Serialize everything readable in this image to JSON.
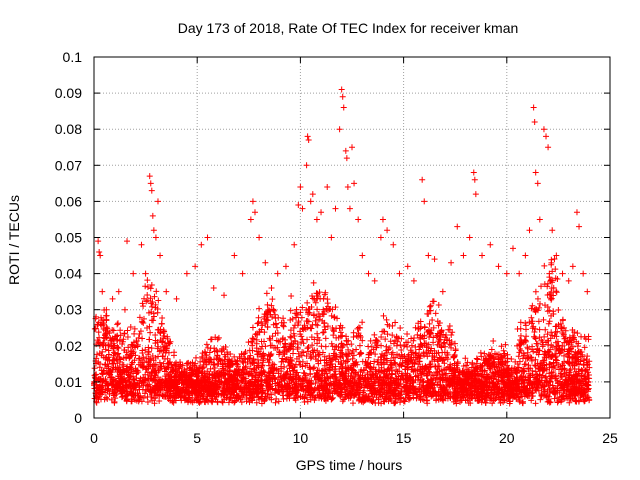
{
  "chart_data": {
    "type": "scatter",
    "title": "Day 173 of 2018, Rate Of TEC Index for receiver kman",
    "xlabel": "GPS time / hours",
    "ylabel": "ROTI / TECUs",
    "xlim": [
      0,
      25
    ],
    "ylim": [
      0,
      0.1
    ],
    "xticks": [
      0,
      5,
      10,
      15,
      20,
      25
    ],
    "xtick_labels": [
      "0",
      "5",
      "10",
      "15",
      "20",
      "25"
    ],
    "yticks": [
      0,
      0.01,
      0.02,
      0.03,
      0.04,
      0.05,
      0.06,
      0.07,
      0.08,
      0.09,
      0.1
    ],
    "ytick_labels": [
      "0",
      "0.01",
      "0.02",
      "0.03",
      "0.04",
      "0.05",
      "0.06",
      "0.07",
      "0.08",
      "0.09",
      "0.1"
    ],
    "grid": true,
    "marker": "+",
    "color": "#ff0000",
    "series": [
      {
        "name": "ROTI",
        "points": [
          [
            0.1,
            0.028
          ],
          [
            0.2,
            0.049
          ],
          [
            0.25,
            0.046
          ],
          [
            0.3,
            0.045
          ],
          [
            0.4,
            0.035
          ],
          [
            0.6,
            0.03
          ],
          [
            0.9,
            0.033
          ],
          [
            1.2,
            0.035
          ],
          [
            1.5,
            0.03
          ],
          [
            1.6,
            0.049
          ],
          [
            1.9,
            0.04
          ],
          [
            2.3,
            0.048
          ],
          [
            2.5,
            0.04
          ],
          [
            2.7,
            0.067
          ],
          [
            2.75,
            0.065
          ],
          [
            2.8,
            0.063
          ],
          [
            2.85,
            0.056
          ],
          [
            2.9,
            0.052
          ],
          [
            3.0,
            0.05
          ],
          [
            3.1,
            0.06
          ],
          [
            3.2,
            0.045
          ],
          [
            3.5,
            0.035
          ],
          [
            4.0,
            0.033
          ],
          [
            4.5,
            0.04
          ],
          [
            4.9,
            0.042
          ],
          [
            5.2,
            0.048
          ],
          [
            5.5,
            0.05
          ],
          [
            5.8,
            0.036
          ],
          [
            6.3,
            0.034
          ],
          [
            6.8,
            0.045
          ],
          [
            7.2,
            0.04
          ],
          [
            7.6,
            0.055
          ],
          [
            7.7,
            0.06
          ],
          [
            7.8,
            0.057
          ],
          [
            8.0,
            0.05
          ],
          [
            8.3,
            0.043
          ],
          [
            8.6,
            0.036
          ],
          [
            8.9,
            0.04
          ],
          [
            9.3,
            0.042
          ],
          [
            9.7,
            0.048
          ],
          [
            9.9,
            0.059
          ],
          [
            10.0,
            0.064
          ],
          [
            10.1,
            0.058
          ],
          [
            10.3,
            0.07
          ],
          [
            10.35,
            0.078
          ],
          [
            10.4,
            0.077
          ],
          [
            10.5,
            0.06
          ],
          [
            10.6,
            0.062
          ],
          [
            10.8,
            0.055
          ],
          [
            11.0,
            0.057
          ],
          [
            11.3,
            0.064
          ],
          [
            11.5,
            0.05
          ],
          [
            11.7,
            0.058
          ],
          [
            11.9,
            0.08
          ],
          [
            12.0,
            0.091
          ],
          [
            12.05,
            0.089
          ],
          [
            12.1,
            0.086
          ],
          [
            12.2,
            0.074
          ],
          [
            12.25,
            0.072
          ],
          [
            12.3,
            0.064
          ],
          [
            12.4,
            0.058
          ],
          [
            12.5,
            0.075
          ],
          [
            12.6,
            0.065
          ],
          [
            12.8,
            0.055
          ],
          [
            13.0,
            0.045
          ],
          [
            13.3,
            0.04
          ],
          [
            13.6,
            0.038
          ],
          [
            13.9,
            0.05
          ],
          [
            14.0,
            0.055
          ],
          [
            14.2,
            0.052
          ],
          [
            14.5,
            0.048
          ],
          [
            14.8,
            0.04
          ],
          [
            15.2,
            0.042
          ],
          [
            15.5,
            0.038
          ],
          [
            15.9,
            0.066
          ],
          [
            16.0,
            0.06
          ],
          [
            16.2,
            0.045
          ],
          [
            16.5,
            0.044
          ],
          [
            16.9,
            0.035
          ],
          [
            17.3,
            0.043
          ],
          [
            17.6,
            0.053
          ],
          [
            17.9,
            0.045
          ],
          [
            18.2,
            0.05
          ],
          [
            18.4,
            0.068
          ],
          [
            18.45,
            0.066
          ],
          [
            18.5,
            0.062
          ],
          [
            18.8,
            0.045
          ],
          [
            19.2,
            0.048
          ],
          [
            19.6,
            0.042
          ],
          [
            20.0,
            0.04
          ],
          [
            20.3,
            0.047
          ],
          [
            20.6,
            0.04
          ],
          [
            20.9,
            0.045
          ],
          [
            21.1,
            0.052
          ],
          [
            21.3,
            0.086
          ],
          [
            21.35,
            0.082
          ],
          [
            21.4,
            0.068
          ],
          [
            21.5,
            0.065
          ],
          [
            21.6,
            0.055
          ],
          [
            21.8,
            0.08
          ],
          [
            21.9,
            0.078
          ],
          [
            22.0,
            0.075
          ],
          [
            22.2,
            0.052
          ],
          [
            22.4,
            0.045
          ],
          [
            22.7,
            0.04
          ],
          [
            23.0,
            0.038
          ],
          [
            23.2,
            0.042
          ],
          [
            23.4,
            0.057
          ],
          [
            23.5,
            0.053
          ],
          [
            23.7,
            0.04
          ],
          [
            23.9,
            0.035
          ]
        ]
      }
    ],
    "dense_band": {
      "description": "dense cloud of ROTI samples over the full day",
      "x_range": [
        0,
        24
      ],
      "lower_bound": 0.004,
      "upper_bound_typical": 0.03,
      "sample_count": 5000
    }
  }
}
